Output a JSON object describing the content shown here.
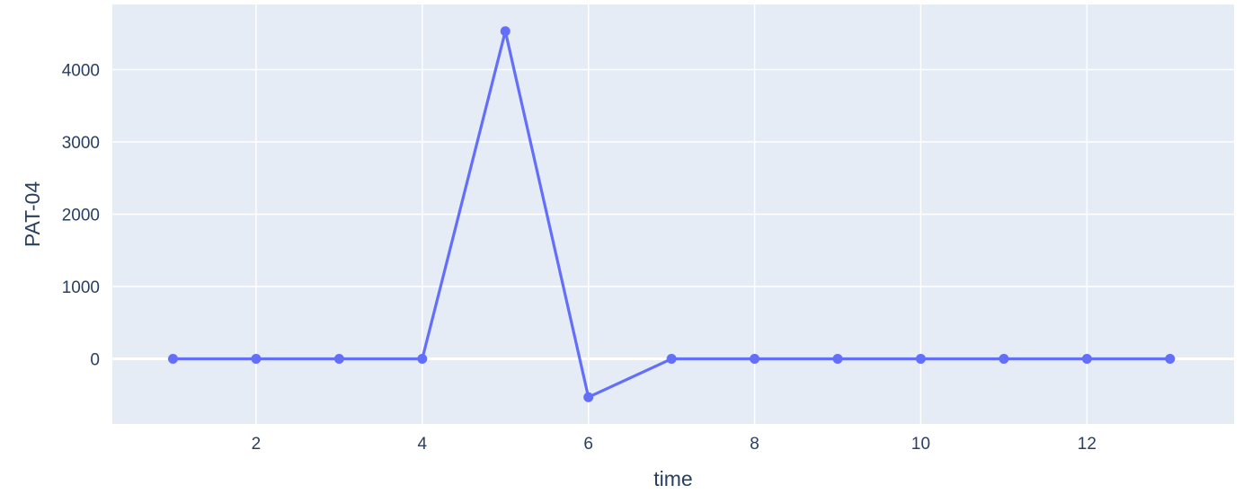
{
  "chart_data": {
    "type": "line",
    "title": "",
    "xlabel": "time",
    "ylabel": "PAT-04",
    "x": [
      1,
      2,
      3,
      4,
      5,
      6,
      7,
      8,
      9,
      10,
      11,
      12,
      13
    ],
    "series": [
      {
        "values": [
          0,
          0,
          0,
          0,
          4530,
          -530,
          0,
          0,
          0,
          0,
          0,
          0,
          0
        ],
        "color": "#636efa",
        "mode": "lines+markers"
      }
    ],
    "xlim": [
      0.27,
      13.77
    ],
    "ylim": [
      -900,
      4900
    ],
    "xticks": [
      2,
      4,
      6,
      8,
      10,
      12
    ],
    "xtick_labels": [
      "2",
      "4",
      "6",
      "8",
      "10",
      "12"
    ],
    "yticks": [
      0,
      1000,
      2000,
      3000,
      4000
    ],
    "ytick_labels": [
      "0",
      "1000",
      "2000",
      "3000",
      "4000"
    ],
    "grid": true,
    "legend": "none",
    "colors": {
      "plot_background": "#e5ecf6",
      "grid": "#ffffff",
      "text": "#2a3f5f"
    }
  }
}
